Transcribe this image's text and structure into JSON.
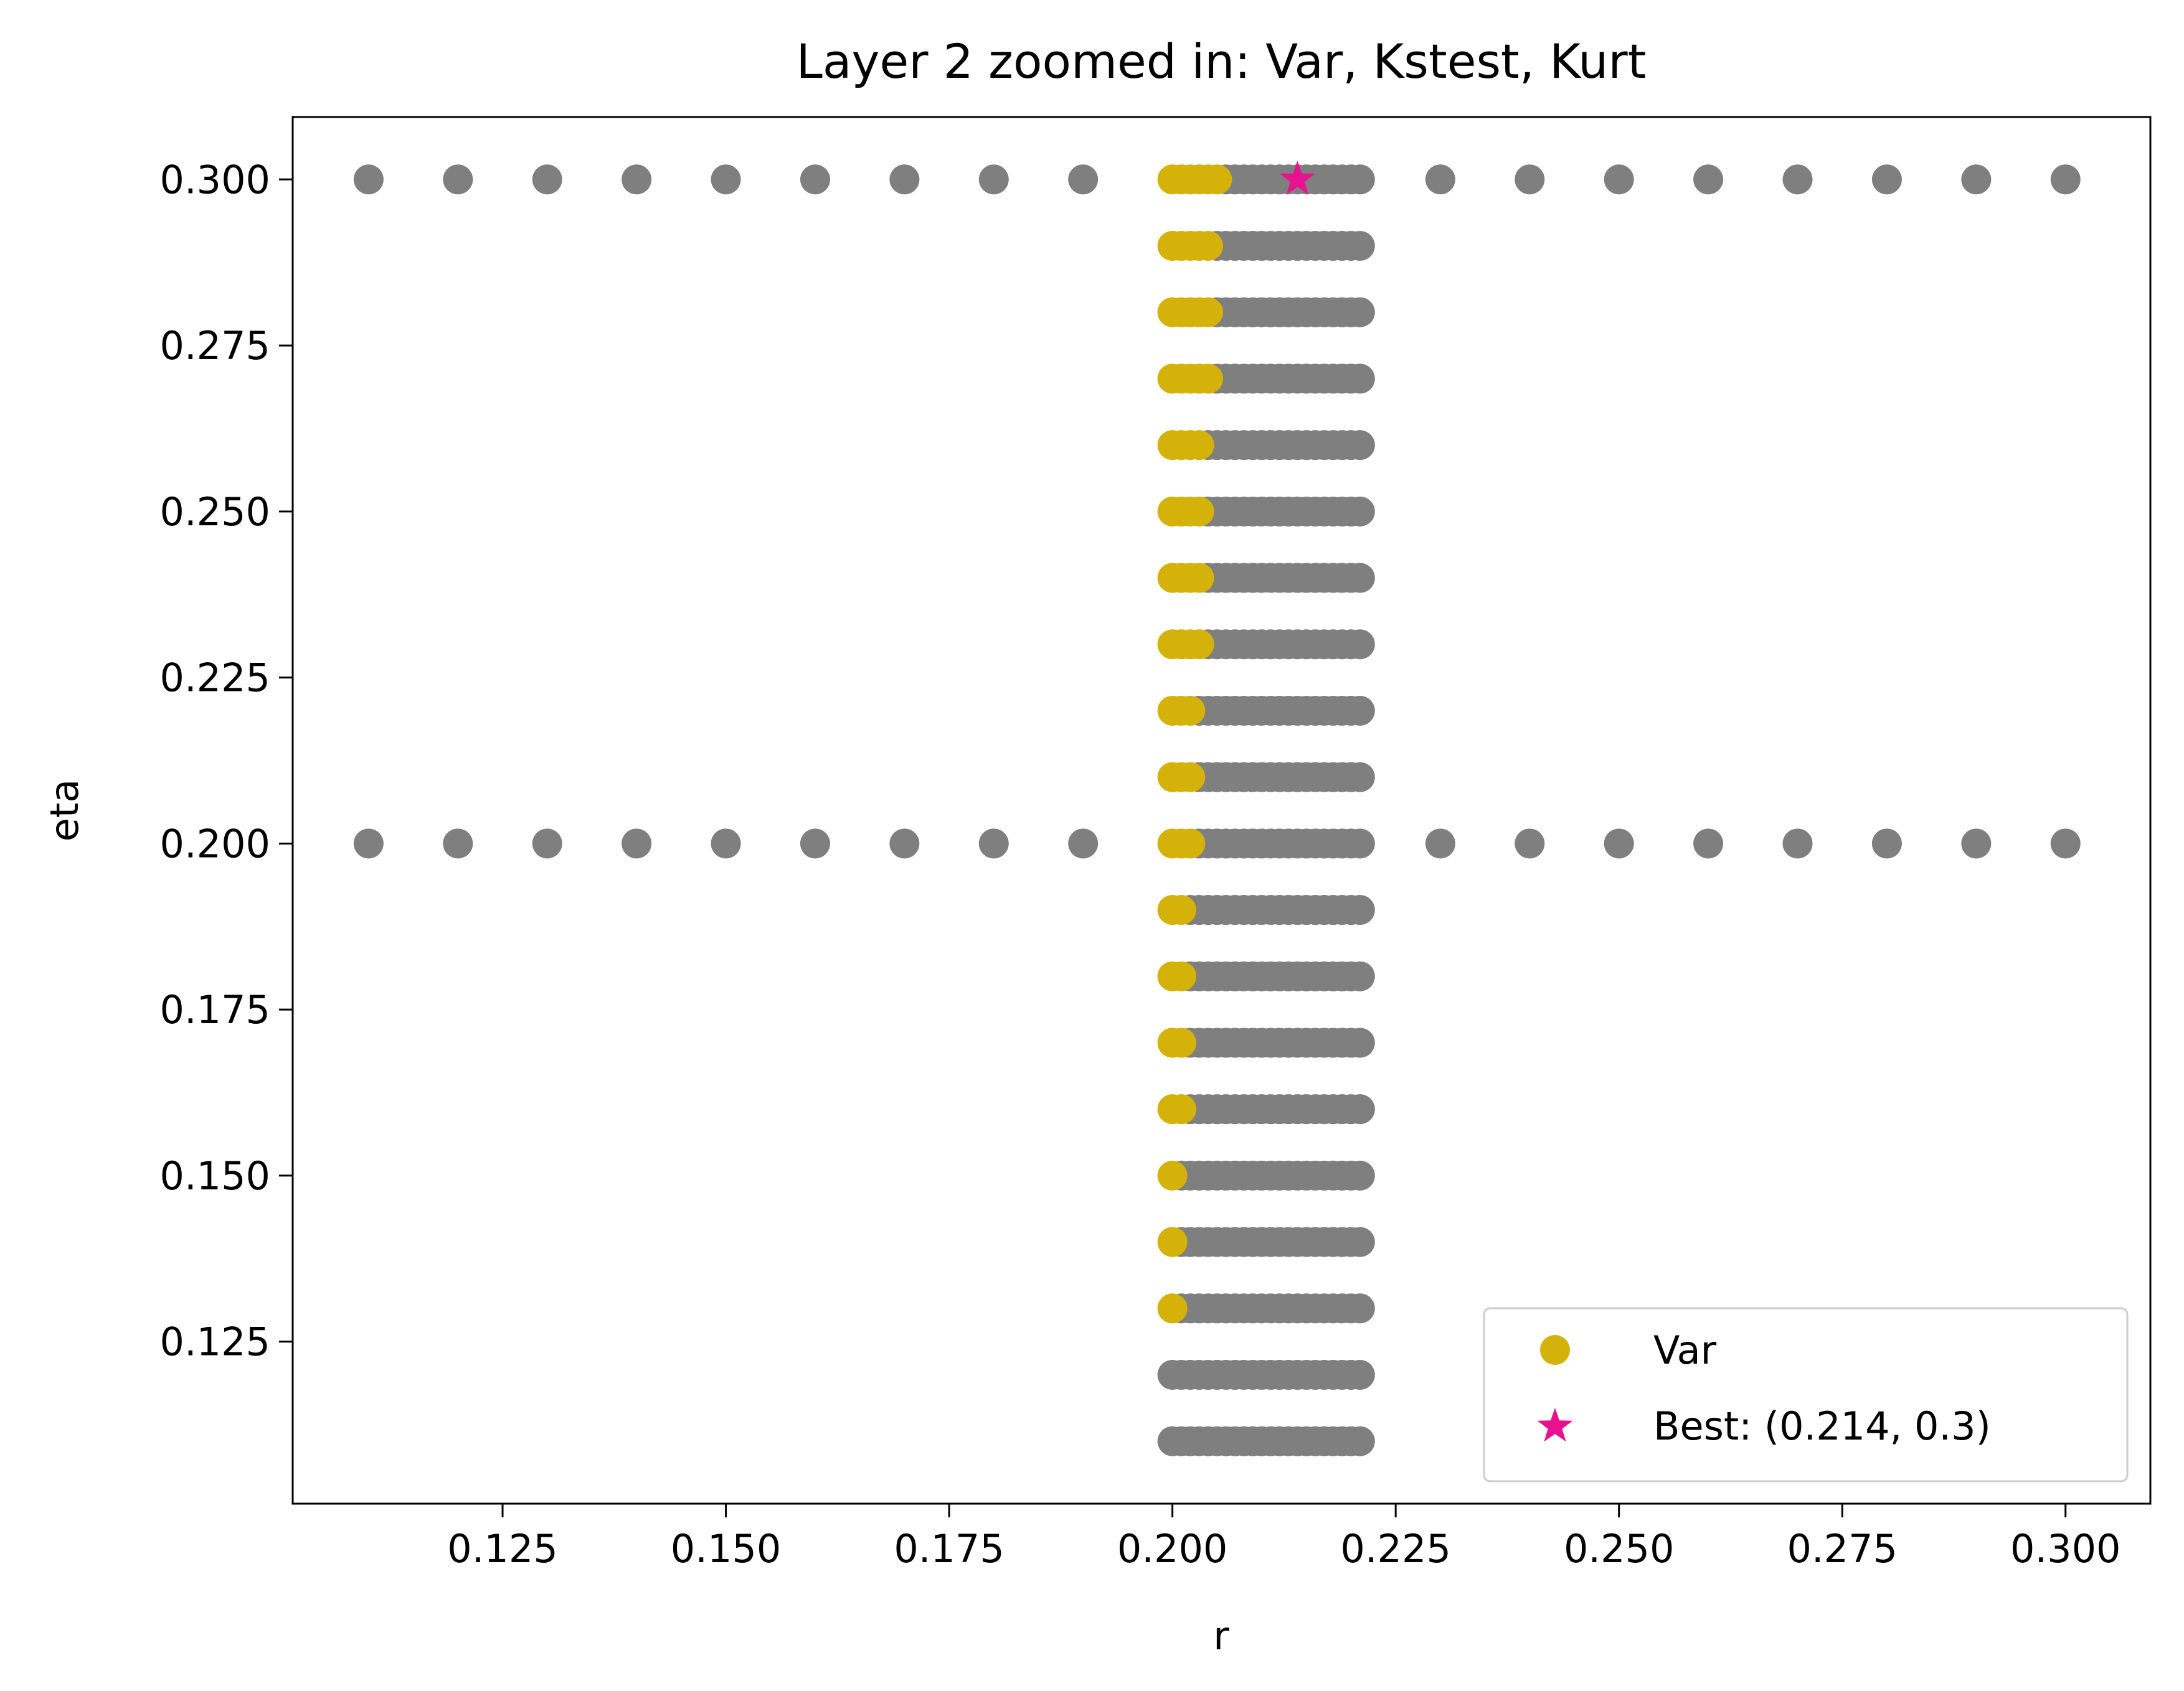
{
  "chart_data": {
    "type": "scatter",
    "title": "Layer 2 zoomed in: Var, Kstest, Kurt",
    "xlabel": "r",
    "ylabel": "eta",
    "xlim": [
      0.1015,
      0.3095
    ],
    "ylim": [
      0.1006,
      0.3094
    ],
    "xticks": [
      0.125,
      0.15,
      0.175,
      0.2,
      0.225,
      0.25,
      0.275,
      0.3
    ],
    "xtick_labels": [
      "0.125",
      "0.150",
      "0.175",
      "0.200",
      "0.225",
      "0.250",
      "0.275",
      "0.300"
    ],
    "yticks": [
      0.125,
      0.15,
      0.175,
      0.2,
      0.225,
      0.25,
      0.275,
      0.3
    ],
    "ytick_labels": [
      "0.125",
      "0.150",
      "0.175",
      "0.200",
      "0.225",
      "0.250",
      "0.275",
      "0.300"
    ],
    "grid": false,
    "legend_position": "bottom-right",
    "colors": {
      "var": "#d4b209",
      "gray": "#7f7f7f",
      "best": "#e8118f"
    },
    "gray_outer_r": [
      0.11,
      0.12,
      0.13,
      0.14,
      0.15,
      0.16,
      0.17,
      0.18,
      0.19,
      0.23,
      0.24,
      0.25,
      0.26,
      0.27,
      0.28,
      0.29,
      0.3
    ],
    "gray_outer_eta": [
      0.2,
      0.3
    ],
    "dense_r_range": [
      0.2,
      0.221
    ],
    "dense_step": 0.001,
    "rows": [
      {
        "eta": 0.11,
        "var_end": null,
        "gray_start": 0.2
      },
      {
        "eta": 0.12,
        "var_end": null,
        "gray_start": 0.2
      },
      {
        "eta": 0.13,
        "var_end": 0.2,
        "gray_start": 0.201
      },
      {
        "eta": 0.14,
        "var_end": 0.2,
        "gray_start": 0.201
      },
      {
        "eta": 0.15,
        "var_end": 0.2,
        "gray_start": 0.201
      },
      {
        "eta": 0.16,
        "var_end": 0.201,
        "gray_start": 0.202
      },
      {
        "eta": 0.17,
        "var_end": 0.201,
        "gray_start": 0.202
      },
      {
        "eta": 0.18,
        "var_end": 0.201,
        "gray_start": 0.202
      },
      {
        "eta": 0.19,
        "var_end": 0.201,
        "gray_start": 0.202
      },
      {
        "eta": 0.2,
        "var_end": 0.202,
        "gray_start": 0.203
      },
      {
        "eta": 0.21,
        "var_end": 0.202,
        "gray_start": 0.203
      },
      {
        "eta": 0.22,
        "var_end": 0.202,
        "gray_start": 0.203
      },
      {
        "eta": 0.23,
        "var_end": 0.203,
        "gray_start": 0.204
      },
      {
        "eta": 0.24,
        "var_end": 0.203,
        "gray_start": 0.204
      },
      {
        "eta": 0.25,
        "var_end": 0.203,
        "gray_start": 0.204
      },
      {
        "eta": 0.26,
        "var_end": 0.203,
        "gray_start": 0.204
      },
      {
        "eta": 0.27,
        "var_end": 0.204,
        "gray_start": 0.205
      },
      {
        "eta": 0.28,
        "var_end": 0.204,
        "gray_start": 0.205
      },
      {
        "eta": 0.29,
        "var_end": 0.204,
        "gray_start": 0.205
      },
      {
        "eta": 0.3,
        "var_end": 0.205,
        "gray_start": 0.206
      }
    ],
    "best": {
      "r": 0.214,
      "eta": 0.3
    },
    "legend": [
      {
        "label": "Var",
        "marker": "circle",
        "color": "#d4b209"
      },
      {
        "label": "Best: (0.214, 0.3)",
        "marker": "star",
        "color": "#e8118f"
      }
    ]
  }
}
